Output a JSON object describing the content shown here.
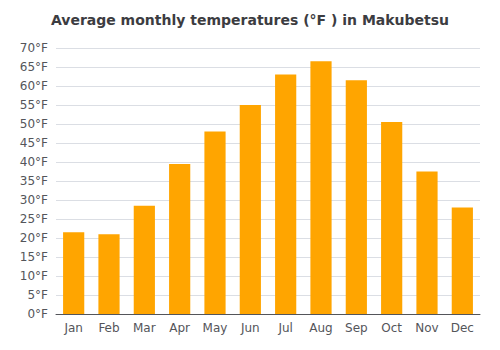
{
  "chart_data": {
    "type": "bar",
    "title": "Average monthly temperatures (°F ) in Makubetsu",
    "categories": [
      "Jan",
      "Feb",
      "Mar",
      "Apr",
      "May",
      "Jun",
      "Jul",
      "Aug",
      "Sep",
      "Oct",
      "Nov",
      "Dec"
    ],
    "values": [
      21.5,
      21.0,
      28.5,
      39.5,
      48.0,
      55.0,
      63.0,
      66.5,
      61.5,
      50.5,
      37.5,
      28.0
    ],
    "color": "#FFA500",
    "ylim": [
      0,
      70
    ],
    "yticks": [
      {
        "value": 0,
        "label": "0°F"
      },
      {
        "value": 5,
        "label": "5°F"
      },
      {
        "value": 10,
        "label": "10°F"
      },
      {
        "value": 15,
        "label": "15°F"
      },
      {
        "value": 20,
        "label": "20°F"
      },
      {
        "value": 25,
        "label": "25°F"
      },
      {
        "value": 30,
        "label": "30°F"
      },
      {
        "value": 35,
        "label": "35°F"
      },
      {
        "value": 40,
        "label": "40°F"
      },
      {
        "value": 45,
        "label": "45°F"
      },
      {
        "value": 50,
        "label": "50°F"
      },
      {
        "value": 55,
        "label": "55°F"
      },
      {
        "value": 60,
        "label": "60°F"
      },
      {
        "value": 65,
        "label": "65°F"
      },
      {
        "value": 70,
        "label": "70°F"
      }
    ],
    "grid": true
  }
}
